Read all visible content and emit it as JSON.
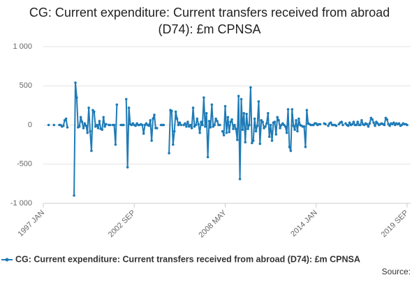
{
  "chart_data": {
    "type": "line",
    "title": "CG: Current expenditure: Current transfers received from abroad (D74): £m CPNSA",
    "source": "Source:",
    "categories": [
      "1997 JAN",
      null,
      null,
      null,
      null,
      null,
      null,
      null,
      null,
      null,
      null,
      null,
      null,
      null,
      null,
      null,
      null,
      null,
      null,
      null,
      null,
      null,
      null,
      null,
      null,
      null,
      null,
      null,
      null,
      null,
      null,
      null,
      null,
      null,
      null,
      null,
      null,
      null,
      null,
      null,
      null,
      null,
      null,
      null,
      null,
      null,
      null,
      null,
      null,
      null,
      null,
      null,
      null,
      null,
      null,
      null,
      null,
      null,
      null,
      null,
      null,
      null,
      null,
      null,
      null,
      null,
      null,
      null,
      "2002 SEP",
      null,
      null,
      null,
      null,
      null,
      null,
      null,
      null,
      null,
      null,
      null,
      null,
      null,
      null,
      null,
      null,
      null,
      null,
      null,
      null,
      null,
      null,
      null,
      null,
      null,
      null,
      null,
      null,
      null,
      null,
      null,
      null,
      null,
      null,
      null,
      null,
      null,
      null,
      null,
      null,
      null,
      null,
      null,
      null,
      null,
      null,
      null,
      null,
      null,
      null,
      null,
      null,
      null,
      null,
      null,
      null,
      null,
      null,
      null,
      null,
      null,
      null,
      null,
      null,
      null,
      null,
      null,
      "2008 MAY",
      null,
      null,
      null,
      null,
      null,
      null,
      null,
      null,
      null,
      null,
      null,
      null,
      null,
      null,
      null,
      null,
      null,
      null,
      null,
      null,
      null,
      null,
      null,
      null,
      null,
      null,
      null,
      null,
      null,
      null,
      null,
      null,
      null,
      null,
      null,
      null,
      null,
      null,
      null,
      null,
      null,
      null,
      null,
      null,
      null,
      null,
      null,
      null,
      null,
      null,
      null,
      null,
      null,
      null,
      null,
      null,
      null,
      null,
      null,
      null,
      null,
      null,
      null,
      null,
      null,
      null,
      null,
      "2014 JAN",
      null,
      null,
      null,
      null,
      null,
      null,
      null,
      null,
      null,
      null,
      null,
      null,
      null,
      null,
      null,
      null,
      null,
      null,
      null,
      null,
      null,
      null,
      null,
      null,
      null,
      null,
      null,
      null,
      null,
      null,
      null,
      null,
      null,
      null,
      null,
      null,
      null,
      null,
      null,
      null,
      null,
      null,
      null,
      null,
      null,
      null,
      null,
      null,
      null,
      null,
      null,
      null,
      null,
      null,
      null,
      null,
      null,
      null,
      null,
      null,
      null,
      null,
      null,
      null,
      null,
      null,
      null,
      "2019 SEP"
    ],
    "series": [
      {
        "name": "CG: Current expenditure: Current transfers received from abroad (D74): £m CPNSA",
        "color": "#1f7bb6",
        "values": [
          null,
          null,
          null,
          null,
          0,
          null,
          null,
          null,
          0,
          null,
          null,
          null,
          0,
          0,
          -20,
          -10,
          60,
          80,
          -30,
          null,
          null,
          null,
          null,
          -900,
          540,
          350,
          -30,
          -20,
          100,
          40,
          -40,
          20,
          -10,
          -100,
          220,
          -80,
          -330,
          190,
          170,
          -20,
          0,
          -40,
          50,
          -50,
          -60,
          100,
          -20,
          10,
          null,
          0,
          0,
          null,
          0,
          0,
          -250,
          260,
          null,
          null,
          0,
          0,
          0,
          null,
          330,
          -540,
          220,
          10,
          0,
          20,
          0,
          -10,
          20,
          0,
          0,
          10,
          0,
          -110,
          0,
          20,
          0,
          -10,
          60,
          -200,
          80,
          130,
          -40,
          -40,
          null,
          null,
          0,
          0,
          0,
          null,
          null,
          null,
          -360,
          190,
          180,
          -250,
          -80,
          170,
          80,
          0,
          30,
          0,
          null,
          0,
          20,
          -20,
          40,
          -20,
          0,
          -40,
          220,
          -20,
          0,
          80,
          10,
          -100,
          40,
          0,
          350,
          -20,
          150,
          -410,
          50,
          -30,
          260,
          -20,
          0,
          80,
          50,
          0,
          0,
          null,
          -80,
          -130,
          240,
          -100,
          100,
          -90,
          40,
          70,
          -50,
          0,
          -50,
          -190,
          370,
          -690,
          330,
          -60,
          150,
          -220,
          140,
          -50,
          0,
          480,
          -230,
          -200,
          80,
          -80,
          -10,
          300,
          -240,
          60,
          40,
          -40,
          -20,
          20,
          150,
          -150,
          0,
          -200,
          30,
          40,
          -120,
          100,
          60,
          -40,
          0,
          20,
          0,
          -20,
          -100,
          200,
          -280,
          -330,
          200,
          -10,
          -60,
          60,
          -80,
          80,
          0,
          -10,
          -20,
          -20,
          -280,
          190,
          20,
          10,
          0,
          0,
          0,
          20,
          20,
          0,
          10,
          10,
          null,
          null,
          20,
          10,
          null,
          -10,
          20,
          30,
          0,
          0,
          0,
          -10,
          null,
          10,
          30,
          40,
          0,
          null,
          20,
          0,
          -10,
          30,
          0,
          10,
          40,
          0,
          0,
          40,
          0,
          0,
          60,
          10,
          0,
          20,
          10,
          -20,
          20,
          90,
          70,
          30,
          -10,
          40,
          20,
          0,
          10,
          20,
          10,
          0,
          90,
          70,
          10,
          -10,
          20,
          10,
          30,
          0,
          20,
          10,
          20,
          -10,
          0,
          20,
          10,
          10,
          0
        ]
      }
    ],
    "ylim": [
      -1000,
      1000
    ],
    "yticks": [
      {
        "value": -1000,
        "label": "-1 000"
      },
      -500,
      0,
      500,
      {
        "value": 1000,
        "label": "1 000"
      }
    ],
    "grid": true
  }
}
